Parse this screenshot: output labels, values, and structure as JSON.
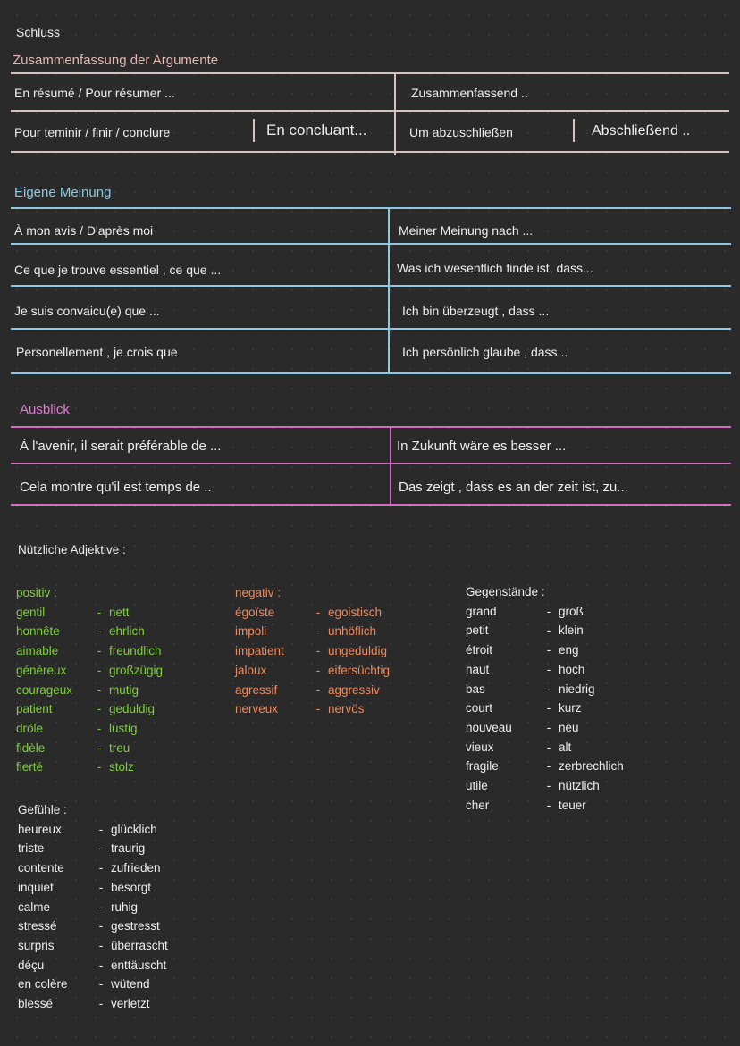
{
  "title": "Schluss",
  "summary": {
    "heading": "Zusammenfassung der Argumente",
    "row1": {
      "fr": "En résumé  / Pour résumer ...",
      "de": "Zusammenfassend .."
    },
    "row2": {
      "fr": "Pour teminir / finir / conclure",
      "fr2": "En concluant...",
      "de": "Um abzuschließen",
      "de2": "Abschließend .."
    }
  },
  "opinion": {
    "heading": "Eigene Meinung",
    "rows": [
      {
        "fr": "À mon avis  /  D'après moi",
        "de": "Meiner Meinung nach ..."
      },
      {
        "fr": "Ce que je trouve essentiel , ce que ...",
        "de": "Was ich wesentlich finde ist, dass..."
      },
      {
        "fr": "Je suis convaicu(e)  que ...",
        "de": "Ich bin überzeugt , dass ..."
      },
      {
        "fr": "Personellement  ,  je crois que",
        "de": "Ich persönlich glaube , dass..."
      }
    ]
  },
  "outlook": {
    "heading": "Ausblick",
    "rows": [
      {
        "fr": "À l'avenir, il serait préférable de ...",
        "de": "In Zukunft wäre es besser ..."
      },
      {
        "fr": "Cela montre qu'il est temps  de ..",
        "de": "Das zeigt , dass es an der zeit ist, zu..."
      }
    ]
  },
  "adjectives": {
    "heading": "Nützliche Adjektive :",
    "positive": {
      "label": "positiv :",
      "items": [
        [
          "gentil",
          "nett"
        ],
        [
          "honnête",
          "ehrlich"
        ],
        [
          "aimable",
          "freundlich"
        ],
        [
          "généreux",
          "großzügig"
        ],
        [
          "courageux",
          "mutig"
        ],
        [
          "patient",
          "geduldig"
        ],
        [
          "drôle",
          "lustig"
        ],
        [
          "fidèle",
          "treu"
        ],
        [
          "fierté",
          "stolz"
        ]
      ]
    },
    "negative": {
      "label": "negativ :",
      "items": [
        [
          "égoïste",
          "egoistisch"
        ],
        [
          "impoli",
          "unhöflich"
        ],
        [
          "impatient",
          "ungeduldig"
        ],
        [
          "jaloux",
          "eifersüchtig"
        ],
        [
          "agressif",
          "aggressiv"
        ],
        [
          "nerveux",
          "nervös"
        ]
      ]
    },
    "objects": {
      "label": "Gegenstände :",
      "items": [
        [
          "grand",
          "groß"
        ],
        [
          "petit",
          "klein"
        ],
        [
          "étroit",
          "eng"
        ],
        [
          "haut",
          "hoch"
        ],
        [
          "bas",
          "niedrig"
        ],
        [
          "court",
          "kurz"
        ],
        [
          "nouveau",
          "neu"
        ],
        [
          "vieux",
          "alt"
        ],
        [
          "fragile",
          "zerbrechlich"
        ],
        [
          "utile",
          "nützlich"
        ],
        [
          "cher",
          "teuer"
        ]
      ]
    },
    "feelings": {
      "label": "Gefühle :",
      "items": [
        [
          "heureux",
          "glücklich"
        ],
        [
          "triste",
          "traurig"
        ],
        [
          "contente",
          "zufrieden"
        ],
        [
          "inquiet",
          "besorgt"
        ],
        [
          "calme",
          "ruhig"
        ],
        [
          "stressé",
          "gestresst"
        ],
        [
          "surpris",
          "überrascht"
        ],
        [
          "déçu",
          "enttäuscht"
        ],
        [
          "en colère",
          "wütend"
        ],
        [
          "blessé",
          "verletzt"
        ]
      ]
    }
  },
  "colors": {
    "summary": "#d8c2bd",
    "opinion": "#8dc9e0",
    "outlook": "#d66bc4",
    "positive": "#7fce3e",
    "negative": "#ef8a5c"
  }
}
